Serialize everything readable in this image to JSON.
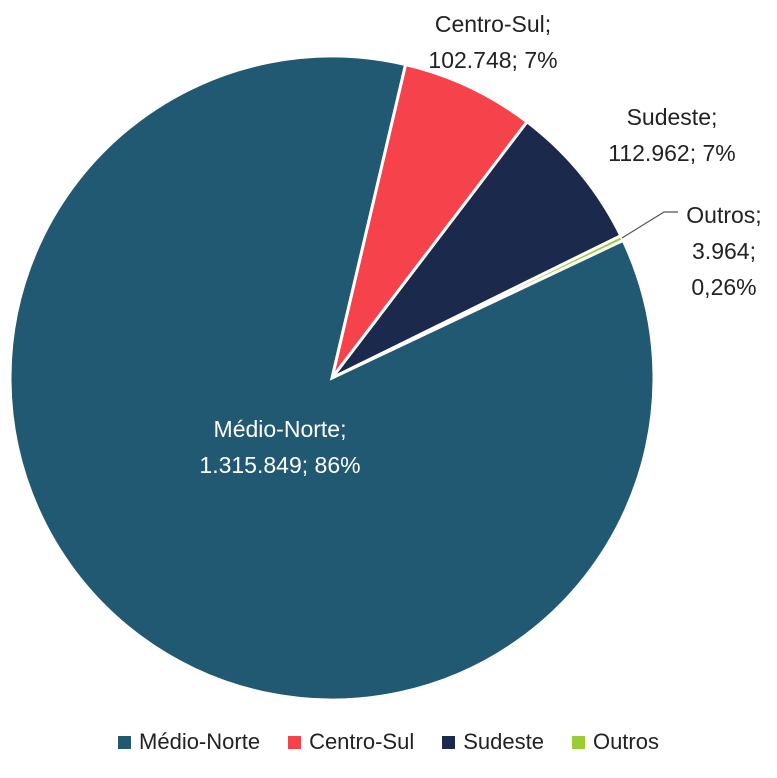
{
  "chart_data": {
    "type": "pie",
    "title": "",
    "slices": [
      {
        "name": "Médio-Norte",
        "value": 1315849,
        "pct_label": "86%",
        "value_label": "1.315.849",
        "color": "#215872"
      },
      {
        "name": "Centro-Sul",
        "value": 102748,
        "pct_label": "7%",
        "value_label": "102.748",
        "color": "#F5424B"
      },
      {
        "name": "Sudeste",
        "value": 112962,
        "pct_label": "7%",
        "value_label": "112.962",
        "color": "#1B2A4C"
      },
      {
        "name": "Outros",
        "value": 3964,
        "pct_label": "0,26%",
        "value_label": "3.964",
        "color": "#9ACD32"
      }
    ],
    "legend_placement": "bottom",
    "start_slice": "Centro-Sul"
  },
  "data_labels": [
    {
      "slice": "Médio-Norte",
      "lines": [
        "Médio-Norte;",
        "1.315.849; 86%"
      ],
      "text_color": "#FFFFFF"
    },
    {
      "slice": "Centro-Sul",
      "lines": [
        "Centro-Sul;",
        "102.748; 7%"
      ],
      "text_color": "#222222"
    },
    {
      "slice": "Sudeste",
      "lines": [
        "Sudeste;",
        "112.962; 7%"
      ],
      "text_color": "#222222"
    },
    {
      "slice": "Outros",
      "lines": [
        "Outros;",
        "3.964;",
        "0,26%"
      ],
      "text_color": "#222222"
    }
  ],
  "legend": {
    "items": [
      {
        "label": "Médio-Norte",
        "color": "#215872"
      },
      {
        "label": "Centro-Sul",
        "color": "#F5424B"
      },
      {
        "label": "Sudeste",
        "color": "#1B2A4C"
      },
      {
        "label": "Outros",
        "color": "#9ACD32"
      }
    ]
  }
}
